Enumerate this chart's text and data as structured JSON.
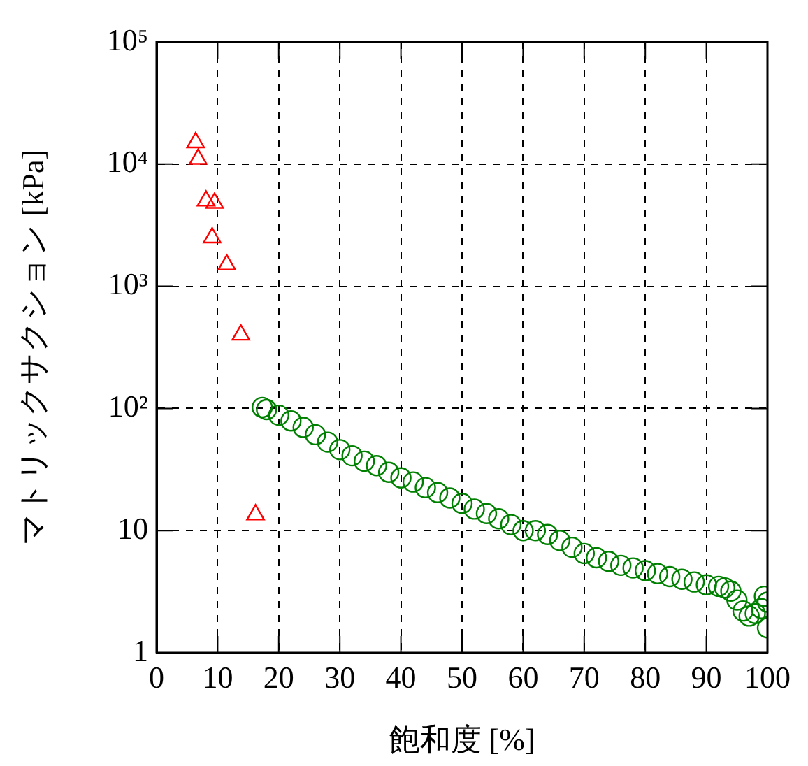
{
  "chart_data": {
    "type": "scatter",
    "xlabel": "飽和度 [%]",
    "ylabel": "マトリックサクション [kPa]",
    "log": "y",
    "grid": true,
    "legend": false,
    "xlim": [
      0,
      100
    ],
    "xticks": [
      0,
      10,
      20,
      30,
      40,
      50,
      60,
      70,
      80,
      90,
      100
    ],
    "ylim": [
      1,
      100000
    ],
    "yticks": [
      1,
      10,
      {
        "value": 100,
        "label": "10²"
      },
      {
        "value": 1000,
        "label": "10³"
      },
      {
        "value": 10000,
        "label": "10⁴"
      },
      {
        "value": 100000,
        "label": "10⁵"
      }
    ],
    "series": [
      {
        "color": "#008000",
        "marker": "circle",
        "x": [
          17.3,
          18,
          20,
          22,
          24,
          26,
          28,
          30,
          32,
          34,
          36,
          38,
          40,
          42,
          44,
          46,
          48,
          50,
          52,
          54,
          56,
          58,
          60,
          62,
          64,
          66,
          68,
          70,
          72,
          74,
          76,
          78,
          80,
          82,
          84,
          86,
          88,
          90,
          92,
          93,
          94,
          95,
          96,
          97,
          98,
          99,
          99.5,
          100,
          100
        ],
        "values": [
          102,
          98,
          88,
          79,
          70,
          61,
          53,
          46,
          41,
          37,
          34,
          30,
          27,
          25,
          22.5,
          20.5,
          18.5,
          16.7,
          15,
          13.8,
          12.5,
          11.2,
          10,
          10,
          9.3,
          8.3,
          7.3,
          6.5,
          6.0,
          5.6,
          5.2,
          4.95,
          4.7,
          4.45,
          4.2,
          4.0,
          3.8,
          3.6,
          3.5,
          3.4,
          3.2,
          2.7,
          2.2,
          2.0,
          2.1,
          2.3,
          2.9,
          2.6,
          1.6
        ]
      },
      {
        "color": "#ff0000",
        "marker": "triangle",
        "x": [
          6.4,
          6.8,
          8.1,
          9.5,
          9.1,
          11.5,
          13.8,
          16.2
        ],
        "values": [
          15000,
          11000,
          5000,
          4800,
          2500,
          1500,
          400,
          13.5
        ]
      }
    ]
  }
}
